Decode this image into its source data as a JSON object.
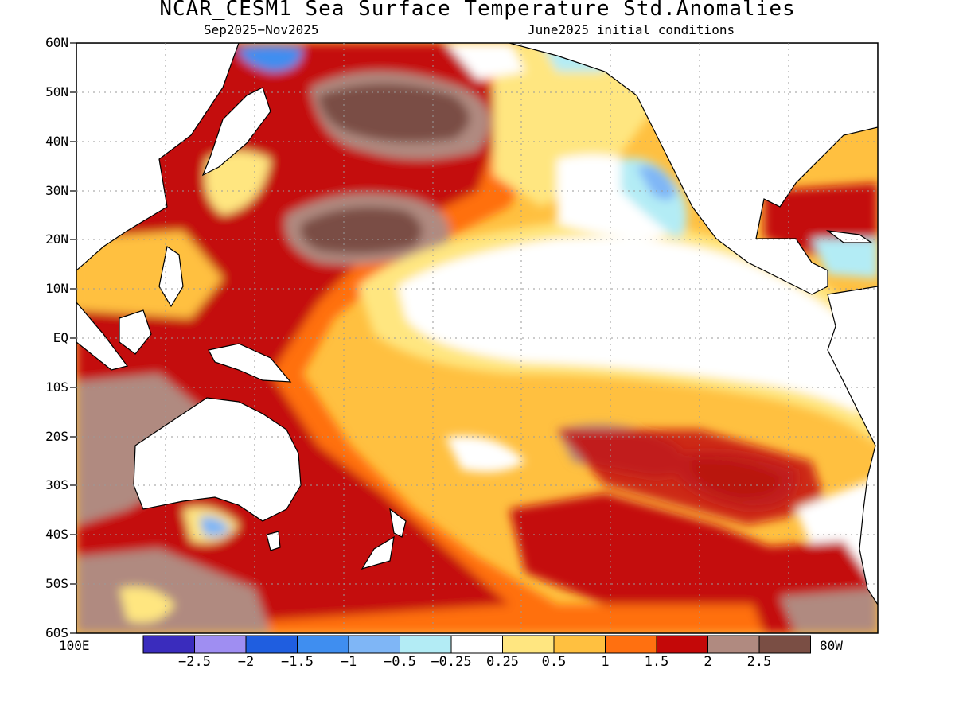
{
  "header": {
    "title": "NCAR_CESM1 Sea Surface Temperature Std.Anomalies",
    "period": "Sep2025−Nov2025",
    "init": "June2025 initial conditions"
  },
  "axes": {
    "lat_labels": [
      "60N",
      "50N",
      "40N",
      "30N",
      "20N",
      "10N",
      "EQ",
      "10S",
      "20S",
      "30S",
      "40S",
      "50S",
      "60S"
    ],
    "lon_left": "100E",
    "lon_right": "80W"
  },
  "legend": {
    "colors": [
      "#3a2cbd",
      "#9f8ef2",
      "#1f5ee0",
      "#3f8ef0",
      "#7fb6f6",
      "#b3ecf5",
      "#ffffff",
      "#ffe680",
      "#ffc040",
      "#ff7010",
      "#c40808",
      "#b08a80",
      "#7a4e44"
    ],
    "labels": [
      "−2.5",
      "−2",
      "−1.5",
      "−1",
      "−0.5",
      "−0.25",
      "0.25",
      "0.5",
      "1",
      "1.5",
      "2",
      "2.5"
    ]
  },
  "colors": {
    "land": "#ffffff",
    "coast": "#000000",
    "ocean_base": "#ffc040"
  }
}
